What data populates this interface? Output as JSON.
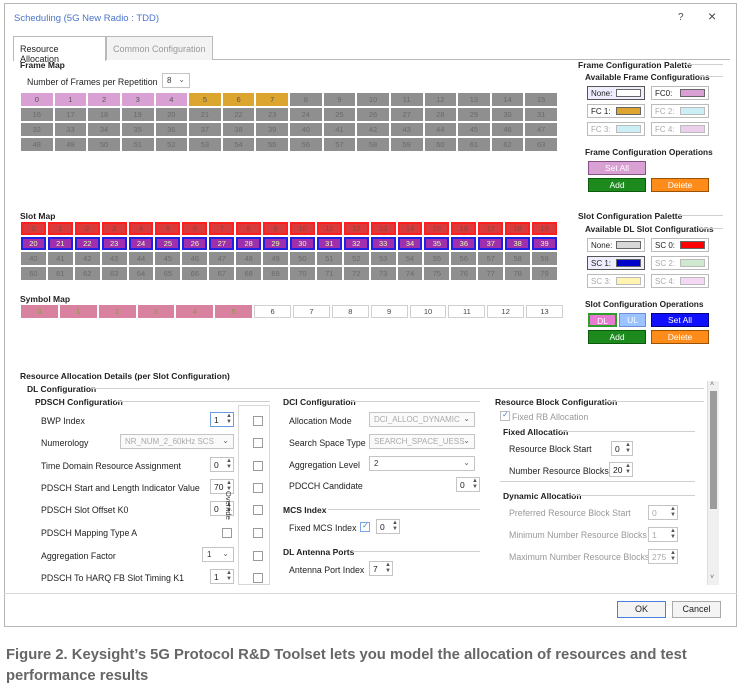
{
  "window": {
    "title": "Scheduling (5G New Radio : TDD)",
    "help": "?",
    "close": "×"
  },
  "tabs": [
    {
      "label": "Resource Allocation"
    },
    {
      "label": "Common Configuration"
    }
  ],
  "frame_map": {
    "title": "Frame Map",
    "frames_label": "Number of Frames per Repetition",
    "frames_value": "8",
    "cells": [
      "0",
      "1",
      "2",
      "3",
      "4",
      "5",
      "6",
      "7",
      "8",
      "9",
      "10",
      "11",
      "12",
      "13",
      "14",
      "15",
      "16",
      "17",
      "18",
      "19",
      "20",
      "21",
      "22",
      "23",
      "24",
      "25",
      "26",
      "27",
      "28",
      "29",
      "30",
      "31",
      "32",
      "33",
      "34",
      "35",
      "36",
      "37",
      "38",
      "39",
      "40",
      "41",
      "42",
      "43",
      "44",
      "45",
      "46",
      "47",
      "48",
      "49",
      "50",
      "51",
      "52",
      "53",
      "54",
      "55",
      "56",
      "57",
      "58",
      "59",
      "60",
      "61",
      "62",
      "63"
    ]
  },
  "slot_map": {
    "title": "Slot Map",
    "cells": [
      "0",
      "1",
      "2",
      "3",
      "4",
      "5",
      "6",
      "7",
      "8",
      "9",
      "10",
      "11",
      "12",
      "13",
      "14",
      "15",
      "16",
      "17",
      "18",
      "19",
      "20",
      "21",
      "22",
      "23",
      "24",
      "25",
      "26",
      "27",
      "28",
      "29",
      "30",
      "31",
      "32",
      "33",
      "34",
      "35",
      "36",
      "37",
      "38",
      "39",
      "40",
      "41",
      "42",
      "43",
      "44",
      "45",
      "46",
      "47",
      "48",
      "49",
      "50",
      "51",
      "52",
      "53",
      "54",
      "55",
      "56",
      "57",
      "58",
      "59",
      "60",
      "61",
      "62",
      "63",
      "64",
      "65",
      "66",
      "67",
      "68",
      "69",
      "70",
      "71",
      "72",
      "73",
      "74",
      "75",
      "76",
      "77",
      "78",
      "79"
    ]
  },
  "symbol_map": {
    "title": "Symbol Map",
    "cells": [
      "0",
      "1",
      "2",
      "3",
      "4",
      "5",
      "6",
      "7",
      "8",
      "9",
      "10",
      "11",
      "12",
      "13"
    ]
  },
  "frame_palette": {
    "title": "Frame Configuration Palette",
    "available": "Available Frame Configurations",
    "items": [
      {
        "label": "None:",
        "color": "#ffffff"
      },
      {
        "label": "FC0:",
        "color": "#d9a0d4"
      },
      {
        "label": "FC 1:",
        "color": "#dba530"
      },
      {
        "label": "FC 2:",
        "color": "#cceff6"
      },
      {
        "label": "FC 3:",
        "color": "#cceff6"
      },
      {
        "label": "FC 4:",
        "color": "#ead0ea"
      }
    ],
    "ops": "Frame Configuration Operations",
    "set_all": "Set All",
    "add": "Add",
    "delete": "Delete"
  },
  "slot_palette": {
    "title": "Slot Configuration Palette",
    "available": "Available DL Slot Configurations",
    "items": [
      {
        "label": "None:",
        "color": "#d8d8d8"
      },
      {
        "label": "SC 0:",
        "color": "#ff0000"
      },
      {
        "label": "SC 1:",
        "color": "#0000cc"
      },
      {
        "label": "SC 2:",
        "color": "#cfe8cf"
      },
      {
        "label": "SC 3:",
        "color": "#fff5b0"
      },
      {
        "label": "SC 4:",
        "color": "#f3d9f3"
      }
    ],
    "ops": "Slot Configuration Operations",
    "dl": "DL",
    "ul": "UL",
    "set_all": "Set All",
    "add": "Add",
    "delete": "Delete"
  },
  "details": {
    "title": "Resource Allocation Details (per Slot Configuration)",
    "dl_config": "DL Configuration"
  },
  "pdsch": {
    "title": "PDSCH Configuration",
    "override": "Override",
    "rows": [
      {
        "label": "BWP Index",
        "value": "1"
      },
      {
        "label": "Numerology",
        "value": "NR_NUM_2_60kHz SCS"
      },
      {
        "label": "Time Domain Resource Assignment",
        "value": "0"
      },
      {
        "label": "PDSCH Start and Length Indicator Value",
        "value": "70"
      },
      {
        "label": "PDSCH Slot Offset K0",
        "value": "0"
      },
      {
        "label": "PDSCH Mapping Type A",
        "value": ""
      },
      {
        "label": "Aggregation Factor",
        "value": "1"
      },
      {
        "label": "PDSCH To HARQ FB Slot Timing K1",
        "value": "1"
      }
    ]
  },
  "dci": {
    "title": "DCI Configuration",
    "alloc_label": "Allocation Mode",
    "alloc_value": "DCI_ALLOC_DYNAMIC",
    "search_label": "Search Space Type",
    "search_value": "SEARCH_SPACE_UESS",
    "agg_label": "Aggregation Level",
    "agg_value": "2",
    "cand_label": "PDCCH Candidate",
    "cand_value": "0"
  },
  "mcs": {
    "title": "MCS Index",
    "fixed_label": "Fixed MCS Index",
    "fixed_value": "0"
  },
  "antenna": {
    "title": "DL Antenna Ports",
    "port_label": "Antenna Port Index",
    "port_value": "7"
  },
  "rb": {
    "title": "Resource Block Configuration",
    "fixed_rb": "Fixed RB Allocation",
    "fixed_alloc": "Fixed Allocation",
    "start_label": "Resource Block Start",
    "start_value": "0",
    "num_label": "Number Resource Blocks",
    "num_value": "20",
    "dyn": "Dynamic Allocation",
    "pref_label": "Preferred Resource Block Start",
    "pref_value": "0",
    "min_label": "Minimum Number Resource Blocks",
    "min_value": "1",
    "max_label": "Maximum Number Resource Blocks",
    "max_value": "275"
  },
  "footer": {
    "ok": "OK",
    "cancel": "Cancel"
  },
  "caption": "Figure 2. Keysight’s 5G Protocol R&D Toolset lets you model the allocation of resources and test performance results"
}
